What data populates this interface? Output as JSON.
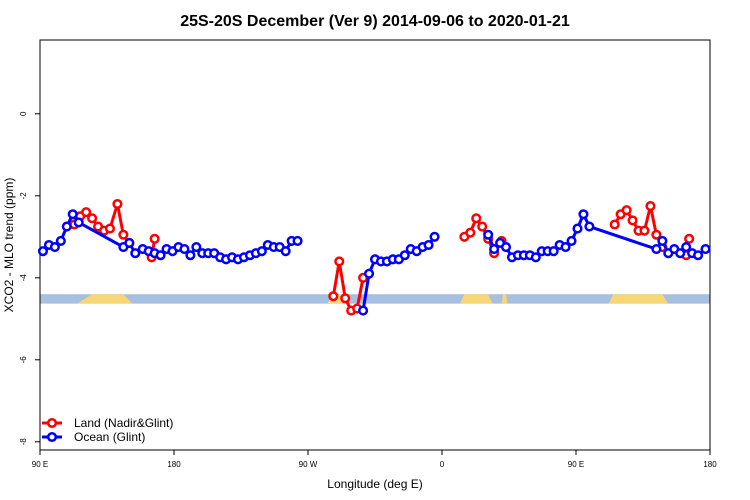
{
  "chart_data": {
    "type": "line",
    "title": "25S-20S December (Ver 9)   2014-09-06 to 2020-01-21",
    "xlabel": "Longitude (deg E)",
    "ylabel": "XCO2 - MLO trend (ppm)",
    "xlim": [
      90,
      540
    ],
    "ylim": [
      -8.2,
      1.8
    ],
    "x_ticks": [
      {
        "value": 90,
        "label": "90 E"
      },
      {
        "value": 180,
        "label": "180"
      },
      {
        "value": 270,
        "label": "90 W"
      },
      {
        "value": 360,
        "label": "0"
      },
      {
        "value": 450,
        "label": "90 E"
      },
      {
        "value": 540,
        "label": "180"
      }
    ],
    "y_ticks": [
      {
        "value": 0,
        "label": "0"
      },
      {
        "value": -2,
        "label": "-2"
      },
      {
        "value": -4,
        "label": "-4"
      },
      {
        "value": -6,
        "label": "-6"
      },
      {
        "value": -8,
        "label": "-8"
      }
    ],
    "grid": false,
    "legend_position": "bottom-left",
    "surface_band": {
      "y_top": -4.4,
      "y_bottom": -4.63,
      "ocean_color": "#a7bfe0",
      "land_color": "#f7d676",
      "land_segments": [
        [
          115,
          125,
          146,
          152
        ],
        [
          283,
          287,
          294,
          299
        ],
        [
          372,
          375,
          391,
          394
        ],
        [
          400,
          401,
          403,
          404
        ],
        [
          472,
          475,
          508,
          512
        ]
      ]
    },
    "series": [
      {
        "name": "Land (Nadir&Glint)",
        "color": "#ff0000",
        "segments": [
          [
            [
              113,
              -2.7
            ],
            [
              117,
              -2.5
            ],
            [
              121,
              -2.4
            ],
            [
              125,
              -2.55
            ],
            [
              129,
              -2.75
            ],
            [
              133,
              -2.85
            ],
            [
              137,
              -2.8
            ],
            [
              142,
              -2.2
            ],
            [
              146,
              -2.95
            ],
            [
              150,
              -3.15
            ]
          ],
          [
            [
              165,
              -3.5
            ],
            [
              167,
              -3.05
            ]
          ],
          [
            [
              287,
              -4.45
            ],
            [
              291,
              -3.6
            ],
            [
              295,
              -4.5
            ],
            [
              299,
              -4.8
            ],
            [
              303,
              -4.75
            ],
            [
              307,
              -4.0
            ]
          ],
          [
            [
              375,
              -3.0
            ],
            [
              379,
              -2.9
            ],
            [
              383,
              -2.55
            ],
            [
              387,
              -2.75
            ],
            [
              391,
              -3.05
            ],
            [
              395,
              -3.4
            ]
          ],
          [
            [
              400,
              -3.1
            ]
          ],
          [
            [
              476,
              -2.7
            ],
            [
              480,
              -2.45
            ],
            [
              484,
              -2.35
            ],
            [
              488,
              -2.6
            ],
            [
              492,
              -2.85
            ],
            [
              496,
              -2.85
            ],
            [
              500,
              -2.25
            ],
            [
              504,
              -2.95
            ],
            [
              508,
              -3.25
            ]
          ],
          [
            [
              524,
              -3.45
            ],
            [
              526,
              -3.05
            ]
          ]
        ]
      },
      {
        "name": "Ocean (Glint)",
        "color": "#0000ff",
        "segments": [
          [
            [
              92,
              -3.35
            ],
            [
              96,
              -3.2
            ],
            [
              100,
              -3.25
            ],
            [
              104,
              -3.1
            ],
            [
              108,
              -2.75
            ],
            [
              112,
              -2.45
            ],
            [
              116,
              -2.65
            ],
            [
              146,
              -3.25
            ],
            [
              150,
              -3.15
            ],
            [
              154,
              -3.4
            ],
            [
              159,
              -3.3
            ],
            [
              163,
              -3.35
            ],
            [
              167,
              -3.4
            ],
            [
              171,
              -3.45
            ],
            [
              175,
              -3.3
            ],
            [
              179,
              -3.35
            ],
            [
              183,
              -3.25
            ],
            [
              187,
              -3.3
            ],
            [
              191,
              -3.45
            ],
            [
              195,
              -3.25
            ],
            [
              199,
              -3.4
            ],
            [
              203,
              -3.4
            ],
            [
              207,
              -3.4
            ],
            [
              211,
              -3.5
            ],
            [
              215,
              -3.55
            ],
            [
              219,
              -3.5
            ],
            [
              223,
              -3.55
            ],
            [
              227,
              -3.5
            ],
            [
              231,
              -3.45
            ],
            [
              235,
              -3.4
            ],
            [
              239,
              -3.35
            ],
            [
              243,
              -3.2
            ],
            [
              247,
              -3.25
            ],
            [
              251,
              -3.25
            ],
            [
              255,
              -3.35
            ],
            [
              259,
              -3.1
            ],
            [
              263,
              -3.1
            ]
          ],
          [
            [
              307,
              -4.8
            ],
            [
              311,
              -3.9
            ],
            [
              315,
              -3.55
            ],
            [
              319,
              -3.6
            ],
            [
              323,
              -3.6
            ],
            [
              327,
              -3.55
            ],
            [
              331,
              -3.55
            ],
            [
              335,
              -3.45
            ],
            [
              339,
              -3.3
            ],
            [
              343,
              -3.35
            ],
            [
              347,
              -3.25
            ],
            [
              351,
              -3.2
            ],
            [
              355,
              -3.0
            ]
          ],
          [
            [
              391,
              -2.95
            ],
            [
              395,
              -3.3
            ],
            [
              399,
              -3.15
            ],
            [
              403,
              -3.25
            ],
            [
              407,
              -3.5
            ],
            [
              411,
              -3.45
            ],
            [
              415,
              -3.45
            ],
            [
              419,
              -3.45
            ],
            [
              423,
              -3.5
            ],
            [
              427,
              -3.35
            ],
            [
              431,
              -3.35
            ],
            [
              435,
              -3.35
            ],
            [
              439,
              -3.2
            ],
            [
              443,
              -3.25
            ],
            [
              447,
              -3.1
            ],
            [
              451,
              -2.8
            ],
            [
              455,
              -2.45
            ],
            [
              459,
              -2.75
            ],
            [
              504,
              -3.3
            ],
            [
              508,
              -3.1
            ],
            [
              512,
              -3.4
            ],
            [
              516,
              -3.3
            ],
            [
              520,
              -3.4
            ],
            [
              524,
              -3.25
            ],
            [
              528,
              -3.4
            ],
            [
              532,
              -3.45
            ],
            [
              537,
              -3.3
            ]
          ]
        ]
      }
    ]
  }
}
